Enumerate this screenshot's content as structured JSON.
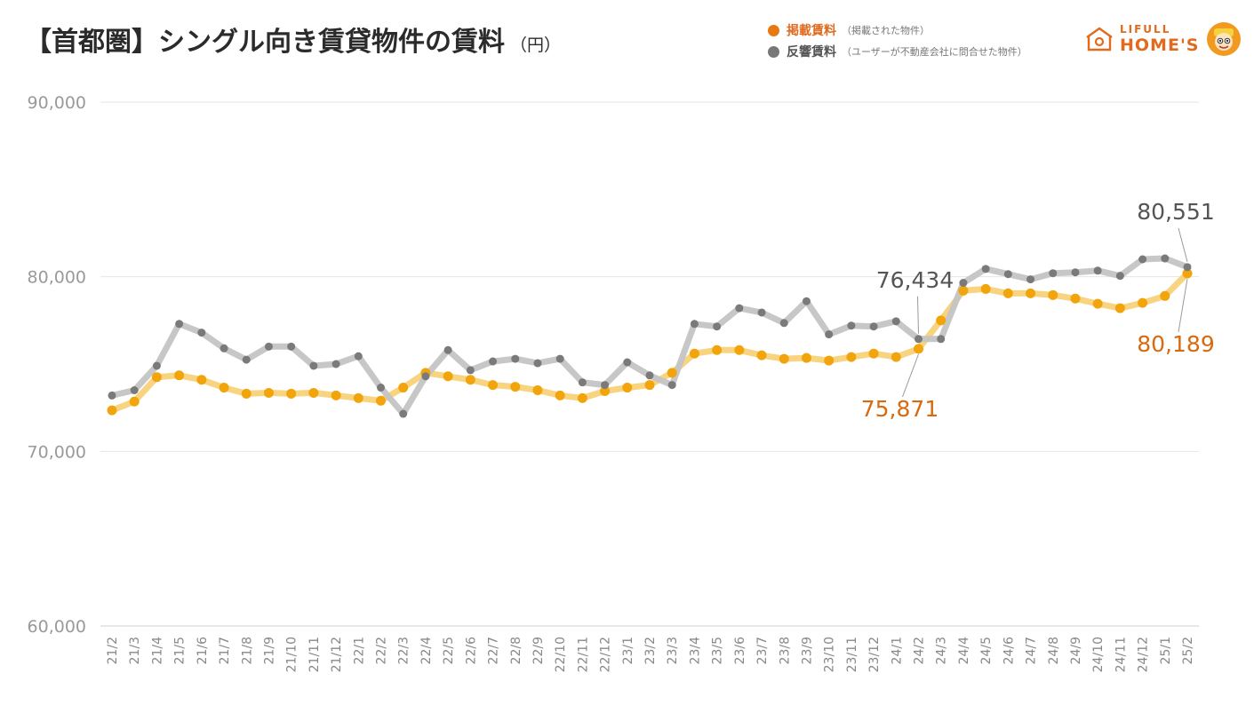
{
  "title": {
    "main": "【首都圏】シングル向き賃貸物件の賃料",
    "unit": "（円）"
  },
  "legend": [
    {
      "name": "掲載賃料",
      "note": "（掲載された物件）",
      "color": "#e8780f"
    },
    {
      "name": "反響賃料",
      "note": "（ユーザーが不動産会社に問合せた物件）",
      "color": "#777777"
    }
  ],
  "logo": {
    "line1": "LIFULL",
    "line2": "HOME'S",
    "color": "#e06b1f"
  },
  "chart_data": {
    "type": "line",
    "ylim": [
      60000,
      90000
    ],
    "yticks": [
      "60,000",
      "70,000",
      "80,000",
      "90,000"
    ],
    "ytick_values": [
      60000,
      70000,
      80000,
      90000
    ],
    "categories": [
      "21/2",
      "21/3",
      "21/4",
      "21/5",
      "21/6",
      "21/7",
      "21/8",
      "21/9",
      "21/10",
      "21/11",
      "21/12",
      "22/1",
      "22/2",
      "22/3",
      "22/4",
      "22/5",
      "22/6",
      "22/7",
      "22/8",
      "22/9",
      "22/10",
      "22/11",
      "22/12",
      "23/1",
      "23/2",
      "23/3",
      "23/4",
      "23/5",
      "23/6",
      "23/7",
      "23/8",
      "23/9",
      "23/10",
      "23/11",
      "23/12",
      "24/1",
      "24/2",
      "24/3",
      "24/4",
      "24/5",
      "24/6",
      "24/7",
      "24/8",
      "24/9",
      "24/10",
      "24/11",
      "24/12",
      "25/1",
      "25/2"
    ],
    "series": [
      {
        "name": "掲載賃料",
        "line_color": "#f8d27a",
        "point_color": "#f2a40c",
        "values": [
          72350,
          72850,
          74250,
          74350,
          74100,
          73650,
          73300,
          73350,
          73300,
          73350,
          73200,
          73050,
          72900,
          73650,
          74500,
          74300,
          74100,
          73800,
          73700,
          73500,
          73200,
          73050,
          73450,
          73650,
          73800,
          74500,
          75600,
          75800,
          75800,
          75500,
          75300,
          75350,
          75200,
          75400,
          75600,
          75400,
          75871,
          77500,
          79200,
          79300,
          79050,
          79050,
          78950,
          78750,
          78450,
          78200,
          78500,
          78900,
          80189
        ]
      },
      {
        "name": "反響賃料",
        "line_color": "#c4c4c4",
        "point_color": "#7a7a7a",
        "values": [
          73200,
          73500,
          74900,
          77300,
          76800,
          75900,
          75250,
          76000,
          76000,
          74900,
          75000,
          75450,
          73650,
          72150,
          74300,
          75800,
          74650,
          75150,
          75300,
          75050,
          75300,
          73950,
          73800,
          75100,
          74350,
          73800,
          77300,
          77150,
          78200,
          77950,
          77350,
          78600,
          76700,
          77200,
          77150,
          77450,
          76434,
          76434,
          79650,
          80450,
          80150,
          79850,
          80200,
          80250,
          80350,
          80050,
          81000,
          81050,
          80551
        ]
      }
    ],
    "annotations": [
      {
        "text": "76,434",
        "series": 1,
        "index": 36,
        "color": "#555555"
      },
      {
        "text": "75,871",
        "series": 0,
        "index": 36,
        "color": "#d86a10"
      },
      {
        "text": "80,551",
        "series": 1,
        "index": 48,
        "color": "#555555"
      },
      {
        "text": "80,189",
        "series": 0,
        "index": 48,
        "color": "#d86a10"
      }
    ],
    "grid": true
  }
}
